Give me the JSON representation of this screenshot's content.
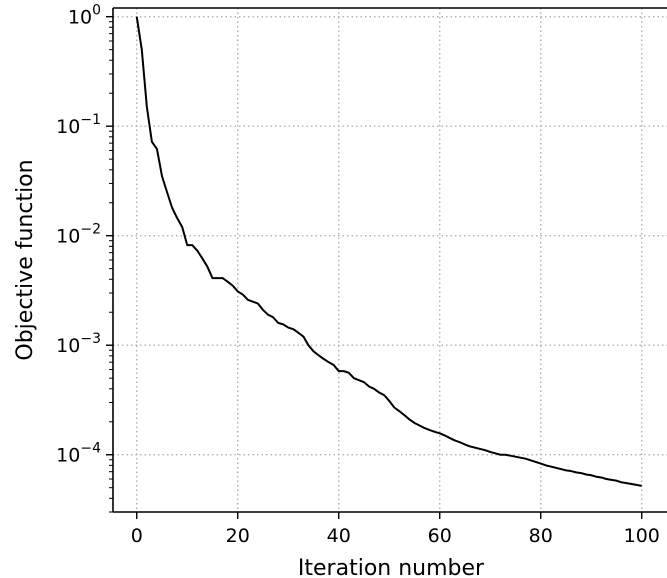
{
  "chart_data": {
    "type": "line",
    "title": "",
    "xlabel": "Iteration number",
    "ylabel": "Objective function",
    "xlim": [
      -4.7,
      105
    ],
    "ylim": [
      3e-05,
      1.2
    ],
    "xscale": "linear",
    "yscale": "log",
    "grid": true,
    "grid_style": "dotted",
    "line_color": "#000000",
    "x_ticks": [
      0,
      20,
      40,
      60,
      80,
      100
    ],
    "x_tick_labels": [
      "0",
      "20",
      "40",
      "60",
      "80",
      "100"
    ],
    "y_ticks": [
      1,
      0.1,
      0.01,
      0.001,
      0.0001
    ],
    "y_tick_labels": [
      {
        "base": "10",
        "exp": "0"
      },
      {
        "base": "10",
        "exp": "−1"
      },
      {
        "base": "10",
        "exp": "−2"
      },
      {
        "base": "10",
        "exp": "−3"
      },
      {
        "base": "10",
        "exp": "−4"
      }
    ],
    "series": [
      {
        "x": [
          0,
          1,
          2,
          3,
          4,
          5,
          6,
          7,
          8,
          9,
          10,
          11,
          12,
          13,
          14,
          15,
          16,
          17,
          18,
          19,
          20,
          21,
          22,
          23,
          24,
          25,
          26,
          27,
          28,
          29,
          30,
          31,
          32,
          33,
          34,
          35,
          36,
          37,
          38,
          39,
          40,
          41,
          42,
          43,
          44,
          45,
          46,
          47,
          48,
          49,
          50,
          51,
          52,
          53,
          54,
          55,
          56,
          57,
          58,
          59,
          60,
          61,
          62,
          63,
          64,
          65,
          66,
          67,
          68,
          69,
          70,
          71,
          72,
          73,
          74,
          75,
          76,
          77,
          78,
          79,
          80,
          81,
          82,
          83,
          84,
          85,
          86,
          87,
          88,
          89,
          90,
          91,
          92,
          93,
          94,
          95,
          96,
          97,
          98,
          99,
          100
        ],
        "y": [
          1.0,
          0.5,
          0.15,
          0.072,
          0.062,
          0.035,
          0.025,
          0.018,
          0.0145,
          0.012,
          0.0082,
          0.0082,
          0.0073,
          0.0062,
          0.0052,
          0.0041,
          0.0041,
          0.0041,
          0.0038,
          0.0035,
          0.0031,
          0.0029,
          0.0026,
          0.0025,
          0.0024,
          0.0021,
          0.0019,
          0.0018,
          0.0016,
          0.00155,
          0.00145,
          0.0014,
          0.0013,
          0.0012,
          0.001,
          0.00088,
          0.00081,
          0.00075,
          0.0007,
          0.00066,
          0.00058,
          0.00058,
          0.00056,
          0.0005,
          0.00048,
          0.00046,
          0.00042,
          0.0004,
          0.00037,
          0.00035,
          0.00031,
          0.00027,
          0.00025,
          0.00023,
          0.00021,
          0.000195,
          0.000185,
          0.000175,
          0.000168,
          0.000162,
          0.000157,
          0.00015,
          0.000142,
          0.000135,
          0.00013,
          0.000124,
          0.000119,
          0.000116,
          0.000113,
          0.00011,
          0.000106,
          0.000103,
          0.0001,
          0.0001,
          9.8e-05,
          9.6e-05,
          9.4e-05,
          9.2e-05,
          8.9e-05,
          8.6e-05,
          8.3e-05,
          8e-05,
          7.8e-05,
          7.6e-05,
          7.4e-05,
          7.2e-05,
          7.1e-05,
          6.9e-05,
          6.8e-05,
          6.6e-05,
          6.5e-05,
          6.3e-05,
          6.2e-05,
          6e-05,
          5.9e-05,
          5.8e-05,
          5.6e-05,
          5.5e-05,
          5.4e-05,
          5.3e-05,
          5.2e-05
        ]
      }
    ]
  }
}
